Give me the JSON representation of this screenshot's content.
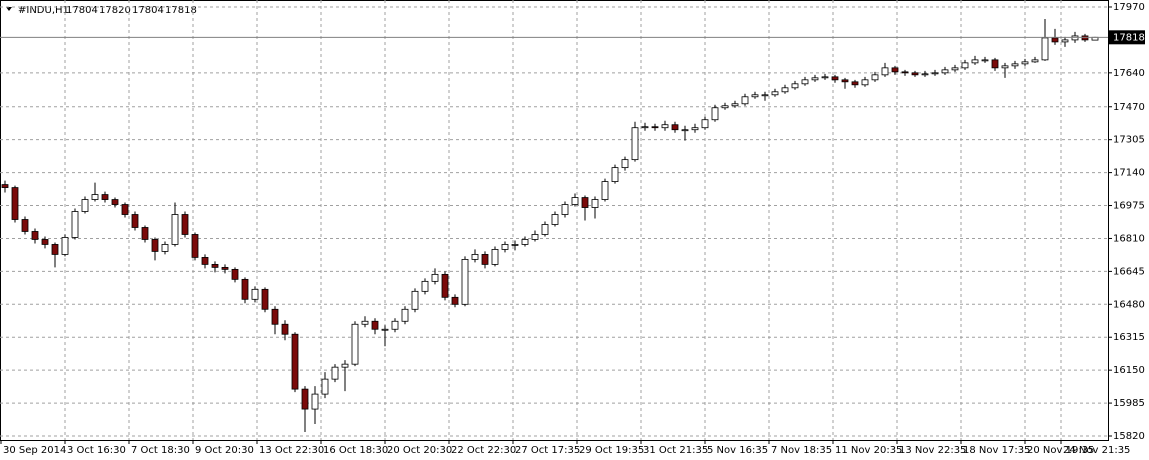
{
  "chart_data": {
    "type": "candlestick",
    "symbol": "#INDU,H1",
    "open": [
      17080,
      17065,
      16905,
      16845,
      16805,
      16780,
      16730,
      16815,
      16945,
      17005,
      17030,
      17005,
      16980,
      16930,
      16865,
      16805,
      16745,
      16780,
      16930,
      16830,
      16715,
      16680,
      16665,
      16655,
      16605,
      16505,
      16555,
      16455,
      16380,
      16330,
      16055,
      15955,
      16030,
      16105,
      16165,
      16180,
      16380,
      16395,
      16355,
      16355,
      16395,
      16455,
      16545,
      16595,
      16630,
      16515,
      16480,
      16705,
      16730,
      16680,
      16755,
      16780,
      16780,
      16805,
      16830,
      16880,
      16930,
      16980,
      17015,
      16965,
      17005,
      17095,
      17165,
      17205,
      17365,
      17370,
      17365,
      17380,
      17355,
      17355,
      17365,
      17405,
      17465,
      17475,
      17485,
      17520,
      17530,
      17530,
      17545,
      17565,
      17585,
      17605,
      17615,
      17620,
      17605,
      17595,
      17580,
      17605,
      17630,
      17665,
      17645,
      17640,
      17630,
      17635,
      17640,
      17655,
      17665,
      17690,
      17705,
      17705,
      17665,
      17675,
      17685,
      17695,
      17705,
      17815,
      17795,
      17805,
      17825,
      17804
    ],
    "high": [
      17100,
      17075,
      16920,
      16860,
      16820,
      16790,
      16830,
      16960,
      17020,
      17090,
      17045,
      17015,
      16990,
      16945,
      16875,
      16815,
      16795,
      16990,
      16945,
      16840,
      16730,
      16695,
      16680,
      16665,
      16615,
      16570,
      16565,
      16470,
      16400,
      16340,
      16070,
      16070,
      16140,
      16180,
      16200,
      16395,
      16420,
      16410,
      16375,
      16410,
      16470,
      16560,
      16610,
      16660,
      16645,
      16530,
      16720,
      16755,
      16745,
      16770,
      16795,
      16800,
      16820,
      16850,
      16895,
      16945,
      16995,
      17035,
      17025,
      17020,
      17110,
      17180,
      17220,
      17395,
      17390,
      17385,
      17400,
      17395,
      17375,
      17385,
      17420,
      17480,
      17490,
      17500,
      17535,
      17545,
      17545,
      17560,
      17580,
      17600,
      17620,
      17630,
      17635,
      17630,
      17615,
      17605,
      17620,
      17645,
      17690,
      17675,
      17655,
      17650,
      17650,
      17655,
      17670,
      17680,
      17705,
      17725,
      17720,
      17715,
      17690,
      17700,
      17710,
      17720,
      17910,
      17860,
      17820,
      17845,
      17835,
      17820
    ],
    "low": [
      17040,
      16890,
      16830,
      16785,
      16760,
      16665,
      16720,
      16805,
      16935,
      16995,
      16990,
      16965,
      16915,
      16850,
      16790,
      16700,
      16730,
      16770,
      16815,
      16700,
      16660,
      16640,
      16635,
      16590,
      16485,
      16490,
      16440,
      16330,
      16300,
      16040,
      15840,
      15880,
      16010,
      16090,
      16045,
      16170,
      16365,
      16330,
      16270,
      16340,
      16380,
      16440,
      16530,
      16580,
      16500,
      16465,
      16470,
      16690,
      16660,
      16670,
      16740,
      16750,
      16770,
      16795,
      16820,
      16870,
      16915,
      16970,
      16900,
      16910,
      16995,
      17085,
      17150,
      17195,
      17350,
      17350,
      17350,
      17340,
      17300,
      17340,
      17355,
      17395,
      17455,
      17465,
      17475,
      17510,
      17500,
      17520,
      17535,
      17555,
      17575,
      17595,
      17605,
      17590,
      17560,
      17565,
      17570,
      17595,
      17620,
      17630,
      17625,
      17620,
      17620,
      17625,
      17630,
      17645,
      17655,
      17680,
      17690,
      17650,
      17615,
      17660,
      17675,
      17690,
      17700,
      17780,
      17770,
      17790,
      17795,
      17804
    ],
    "close": [
      17065,
      16905,
      16845,
      16805,
      16780,
      16730,
      16815,
      16945,
      17005,
      17030,
      17005,
      16980,
      16930,
      16865,
      16805,
      16745,
      16780,
      16930,
      16830,
      16715,
      16680,
      16665,
      16655,
      16605,
      16505,
      16555,
      16455,
      16380,
      16330,
      16055,
      15955,
      16030,
      16105,
      16165,
      16180,
      16380,
      16395,
      16355,
      16355,
      16395,
      16455,
      16545,
      16595,
      16630,
      16515,
      16480,
      16705,
      16730,
      16680,
      16755,
      16780,
      16780,
      16805,
      16830,
      16880,
      16930,
      16980,
      17015,
      16965,
      17005,
      17095,
      17165,
      17205,
      17365,
      17370,
      17365,
      17380,
      17355,
      17355,
      17365,
      17405,
      17465,
      17475,
      17485,
      17520,
      17530,
      17530,
      17545,
      17565,
      17585,
      17605,
      17615,
      17620,
      17605,
      17595,
      17580,
      17605,
      17630,
      17665,
      17645,
      17640,
      17630,
      17635,
      17640,
      17655,
      17665,
      17690,
      17705,
      17705,
      17665,
      17675,
      17685,
      17695,
      17705,
      17815,
      17795,
      17805,
      17825,
      17805,
      17818
    ],
    "up_color": "#ffffff",
    "down_color": "#7a0a0a",
    "wick_color": "#000000",
    "ylim": [
      15800,
      18005
    ],
    "yticks": [
      15820,
      15985,
      16150,
      16315,
      16480,
      16645,
      16810,
      16975,
      17140,
      17305,
      17470,
      17640,
      17970
    ],
    "xticks": [
      {
        "value": 0,
        "label": "30 Sep 2014"
      },
      {
        "value": 6.4,
        "label": "3 Oct 16:30"
      },
      {
        "value": 12.8,
        "label": "7 Oct 18:30"
      },
      {
        "value": 19.2,
        "label": "9 Oct 20:30"
      },
      {
        "value": 25.6,
        "label": "13 Oct 22:30"
      },
      {
        "value": 32,
        "label": "16 Oct 18:30"
      },
      {
        "value": 38.4,
        "label": "20 Oct 20:30"
      },
      {
        "value": 44.8,
        "label": "22 Oct 22:30"
      },
      {
        "value": 51.2,
        "label": "27 Oct 17:35"
      },
      {
        "value": 57.6,
        "label": "29 Oct 19:35"
      },
      {
        "value": 64,
        "label": "31 Oct 21:35"
      },
      {
        "value": 70.4,
        "label": "5 Nov 16:35"
      },
      {
        "value": 76.8,
        "label": "7 Nov 18:35"
      },
      {
        "value": 83.2,
        "label": "11 Nov 20:35"
      },
      {
        "value": 89.6,
        "label": "13 Nov 22:35"
      },
      {
        "value": 96,
        "label": "18 Nov 17:35"
      },
      {
        "value": 102.4,
        "label": "20 Nov 19:35"
      },
      {
        "value": 106,
        "label": "24 Nov 21:35"
      }
    ],
    "grid": true
  }
}
